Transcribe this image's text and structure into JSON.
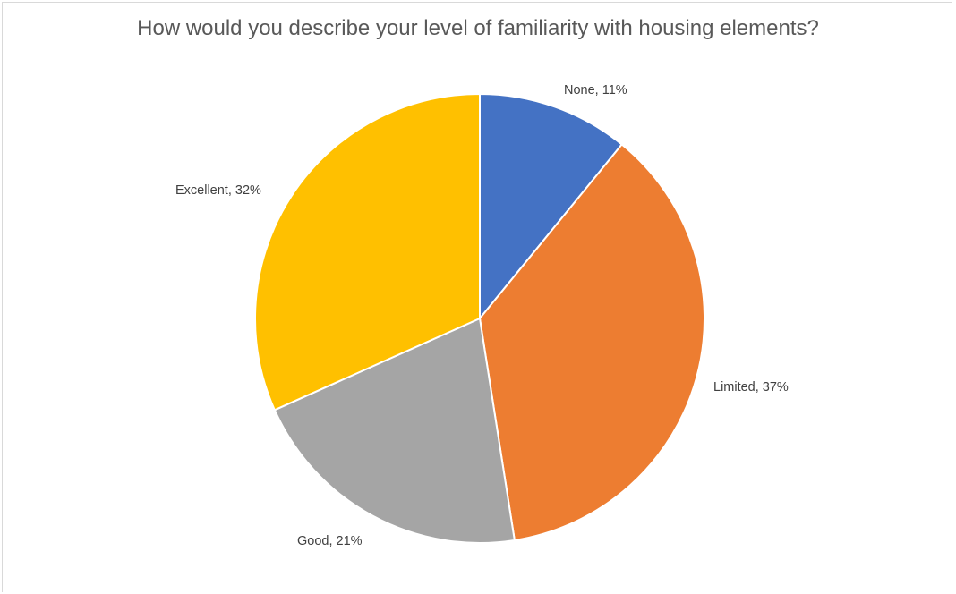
{
  "chart_data": {
    "type": "pie",
    "title": "How would you describe your level of familiarity with housing elements?",
    "categories": [
      "None",
      "Limited",
      "Good",
      "Excellent"
    ],
    "values": [
      11,
      37,
      21,
      32
    ],
    "unit": "%",
    "colors": [
      "#4472C4",
      "#ED7D31",
      "#A5A5A5",
      "#FFC000"
    ],
    "data_labels": [
      "None, 11%",
      "Limited, 37%",
      "Good, 21%",
      "Excellent, 32%"
    ],
    "start_angle_deg": 0,
    "direction": "clockwise",
    "legend": "none"
  }
}
